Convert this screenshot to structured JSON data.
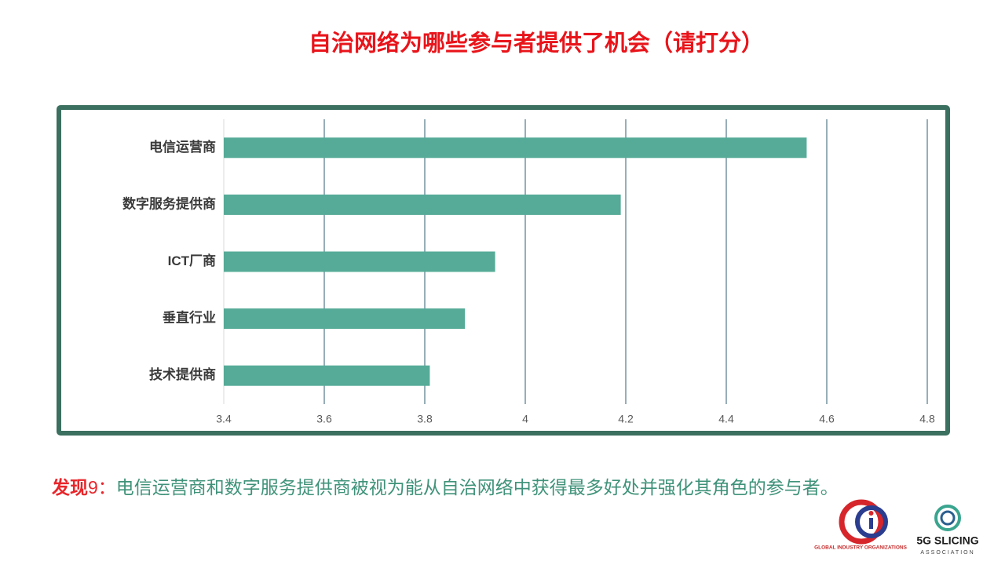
{
  "chart_data": {
    "type": "barh",
    "title": "自治网络为哪些参与者提供了机会（请打分）",
    "categories": [
      "电信运营商",
      "数字服务提供商",
      "ICT厂商",
      "垂直行业",
      "技术提供商"
    ],
    "values": [
      4.56,
      4.19,
      3.94,
      3.88,
      3.81
    ],
    "color": "#55ab97",
    "xlim": [
      3.4,
      4.8
    ],
    "xticks": [
      3.4,
      3.6,
      3.8,
      4,
      4.2,
      4.4,
      4.6,
      4.8
    ],
    "grid": true
  },
  "caption": {
    "label": "发现",
    "number": "9：",
    "text": "电信运营商和数字服务提供商被视为能从自治网络中获得最多好处并强化其角色的参与者。"
  },
  "logos": {
    "gio": "GLOBAL INDUSTRY ORGANIZATIONS",
    "slicing": "5G SLICING",
    "slicing_sub": "ASSOCIATION"
  }
}
